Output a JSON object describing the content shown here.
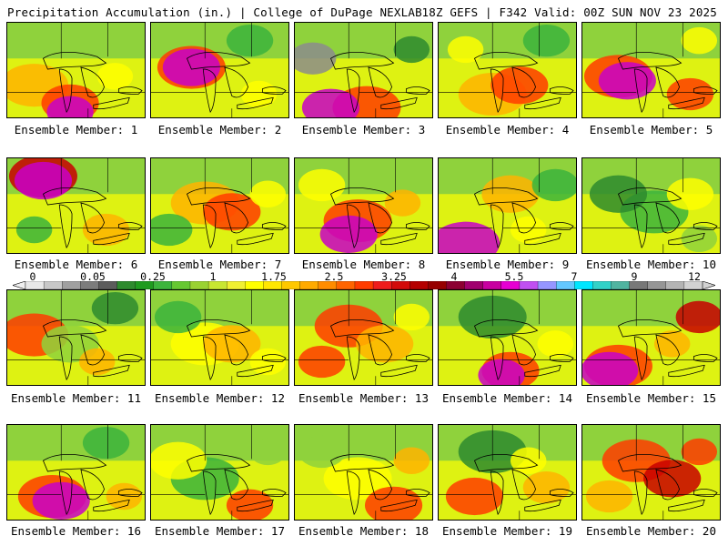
{
  "header": {
    "title": "Precipitation Accumulation (in.) | College of DuPage NEXLAB",
    "run_info": "18Z GEFS | F342 Valid: 00Z SUN NOV 23 2025"
  },
  "members": [
    {
      "label": "Ensemble Member: 1"
    },
    {
      "label": "Ensemble Member: 2"
    },
    {
      "label": "Ensemble Member: 3"
    },
    {
      "label": "Ensemble Member: 4"
    },
    {
      "label": "Ensemble Member: 5"
    },
    {
      "label": "Ensemble Member: 6"
    },
    {
      "label": "Ensemble Member: 7"
    },
    {
      "label": "Ensemble Member: 8"
    },
    {
      "label": "Ensemble Member: 9"
    },
    {
      "label": "Ensemble Member: 10"
    },
    {
      "label": "Ensemble Member: 11"
    },
    {
      "label": "Ensemble Member: 12"
    },
    {
      "label": "Ensemble Member: 13"
    },
    {
      "label": "Ensemble Member: 14"
    },
    {
      "label": "Ensemble Member: 15"
    },
    {
      "label": "Ensemble Member: 16"
    },
    {
      "label": "Ensemble Member: 17"
    },
    {
      "label": "Ensemble Member: 18"
    },
    {
      "label": "Ensemble Member: 19"
    },
    {
      "label": "Ensemble Member: 20"
    }
  ],
  "colorbar": {
    "labels": [
      "0",
      "0.05",
      "0.25",
      "1",
      "1.75",
      "2.5",
      "3.25",
      "4",
      "5.5",
      "7",
      "9",
      "12"
    ],
    "colors": [
      "#e8e8e8",
      "#c8c8c8",
      "#a0a0a0",
      "#7c7c7c",
      "#5c5c5c",
      "#2e8b2e",
      "#1f9b1f",
      "#3cb43c",
      "#66c832",
      "#9ad232",
      "#c8e632",
      "#f0f032",
      "#ffff00",
      "#ffe600",
      "#ffc800",
      "#ffaa00",
      "#ff8c00",
      "#ff6400",
      "#ff3c00",
      "#ee1c1c",
      "#d20a0a",
      "#b40000",
      "#960000",
      "#8c0032",
      "#a0006e",
      "#c800a0",
      "#e600d2",
      "#c050f0",
      "#9696ff",
      "#64c8ff",
      "#00e6ff",
      "#32d2c8",
      "#50b4a0",
      "#787878",
      "#969696",
      "#b4b4b4",
      "#d2d2d2"
    ]
  },
  "map_colors": {
    "dark_green": "#2e8b2e",
    "green": "#3cb43c",
    "light_green": "#8fd23c",
    "yellow": "#ffff00",
    "orange": "#ffb400",
    "red": "#ff3c00",
    "dark_red": "#c80000",
    "magenta": "#c800c8",
    "gray": "#8c8c8c"
  }
}
